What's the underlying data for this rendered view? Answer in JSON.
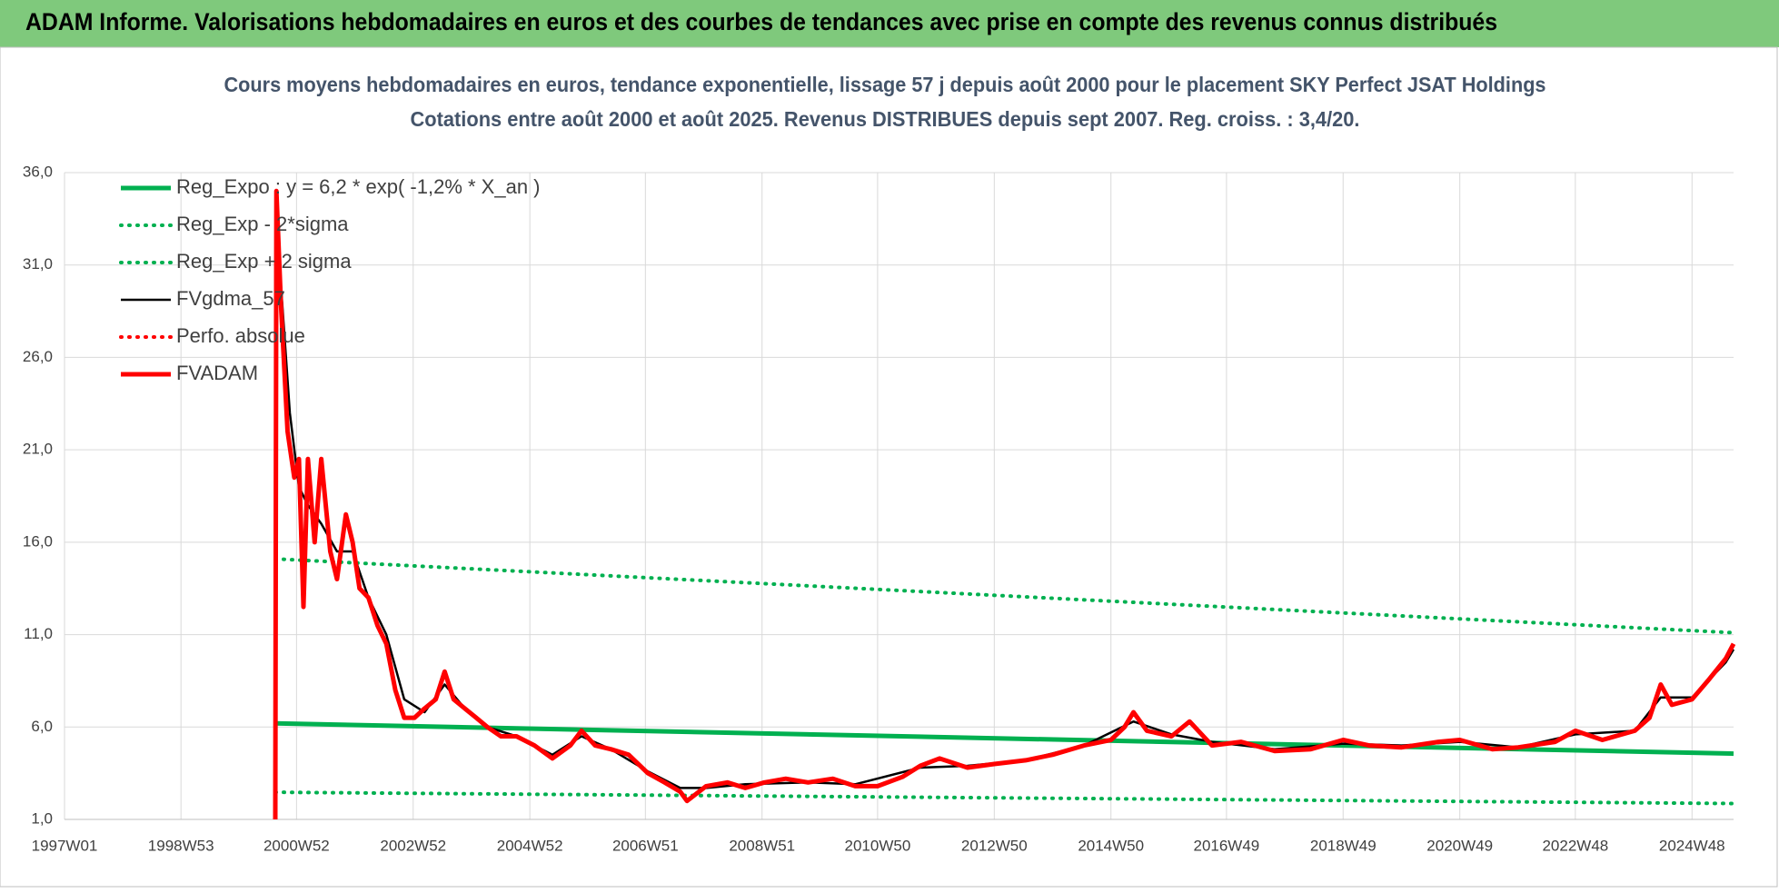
{
  "header": {
    "title": "ADAM Informe. Valorisations hebdomadaires en euros et des courbes de tendances avec prise en compte des revenus connus distribués"
  },
  "chart_data": {
    "type": "line",
    "title": "Cours moyens hebdomadaires en euros, tendance exponentielle, lissage 57 j depuis août 2000 pour le placement SKY Perfect JSAT Holdings",
    "subtitle": "Cotations entre août 2000 et août 2025. Revenus DISTRIBUES depuis sept 2007. Reg. croiss. : 3,4/20.",
    "xlim": [
      "1997W01",
      "2025W33"
    ],
    "xticks": [
      "1997W01",
      "1998W53",
      "2000W52",
      "2002W52",
      "2004W52",
      "2006W51",
      "2008W51",
      "2010W50",
      "2012W50",
      "2014W50",
      "2016W49",
      "2018W49",
      "2020W49",
      "2022W48",
      "2024W48"
    ],
    "ylim": [
      1,
      36
    ],
    "yticks": [
      {
        "value": 1,
        "label": "1,0"
      },
      {
        "value": 6,
        "label": "6,0"
      },
      {
        "value": 11,
        "label": "11,0"
      },
      {
        "value": 16,
        "label": "16,0"
      },
      {
        "value": 21,
        "label": "21,0"
      },
      {
        "value": 26,
        "label": "26,0"
      },
      {
        "value": 31,
        "label": "31,0"
      },
      {
        "value": 36,
        "label": "36,0"
      }
    ],
    "grid": true,
    "legend": "top-left",
    "series": [
      {
        "name": "Reg_Expo : y = 6,2 * exp( -1,2% *  X_an )",
        "color": "#00b050",
        "line_style": "thick",
        "x": [
          "2000W33",
          "2025W33"
        ],
        "values": [
          6.2,
          4.56
        ]
      },
      {
        "name": "Reg_Exp - 2*sigma",
        "color": "#00b050",
        "line_style": "dotted",
        "x": [
          "2000W33",
          "2025W33"
        ],
        "values": [
          2.47,
          1.86
        ]
      },
      {
        "name": "Reg_Exp + 2 sigma",
        "color": "#00b050",
        "line_style": "dotted",
        "x": [
          "2000W33",
          "2025W33"
        ],
        "values": [
          15.1,
          11.1
        ]
      },
      {
        "name": "FVgdma_57",
        "color": "#000000",
        "line_style": "thin",
        "x": [
          "2000W38",
          "2000W46",
          "2001W02",
          "2001W10",
          "2001W22",
          "2001W36",
          "2001W50",
          "2002W12",
          "2002W28",
          "2002W44",
          "2003W10",
          "2003W28",
          "2003W46",
          "2004W14",
          "2004W40",
          "2005W20",
          "2005W46",
          "2006W20",
          "2007W01",
          "2007W30",
          "2008W01",
          "2008W36",
          "2009W40",
          "2010W30",
          "2011W36",
          "2012W26",
          "2013W26",
          "2014W26",
          "2015W18",
          "2015W52",
          "2016W36",
          "2017W40",
          "2018W49",
          "2019W49",
          "2020W49",
          "2021W49",
          "2022W48",
          "2023W49",
          "2024W20",
          "2024W48",
          "2025W26",
          "2025W33"
        ],
        "values": [
          30,
          23,
          19,
          18,
          17,
          15.5,
          15.5,
          13,
          11,
          7.5,
          6.8,
          8.3,
          7,
          6,
          5.5,
          4.5,
          5.5,
          4.8,
          3.6,
          2.7,
          2.7,
          2.9,
          3,
          2.9,
          3.8,
          3.9,
          4.2,
          5,
          6.3,
          5.6,
          5.2,
          4.8,
          5.1,
          5,
          5.2,
          4.9,
          5.6,
          5.8,
          7.6,
          7.6,
          9.5,
          10.2
        ]
      },
      {
        "name": "Perfo. absolue",
        "color": "#ff0000",
        "line_style": "dotted",
        "x": [],
        "values": []
      },
      {
        "name": "FVADAM",
        "color": "#ff0000",
        "line_style": "thick",
        "x": [
          "2000W33",
          "2000W34",
          "2000W38",
          "2000W44",
          "2000W50",
          "2001W02",
          "2001W06",
          "2001W10",
          "2001W16",
          "2001W22",
          "2001W30",
          "2001W36",
          "2001W44",
          "2001W50",
          "2002W04",
          "2002W12",
          "2002W20",
          "2002W28",
          "2002W36",
          "2002W44",
          "2003W01",
          "2003W10",
          "2003W20",
          "2003W28",
          "2003W36",
          "2003W46",
          "2004W04",
          "2004W14",
          "2004W26",
          "2004W40",
          "2005W04",
          "2005W20",
          "2005W36",
          "2005W46",
          "2006W06",
          "2006W20",
          "2006W36",
          "2007W01",
          "2007W16",
          "2007W30",
          "2007W36",
          "2008W01",
          "2008W20",
          "2008W36",
          "2009W01",
          "2009W20",
          "2009W40",
          "2010W10",
          "2010W30",
          "2010W50",
          "2011W20",
          "2011W36",
          "2012W01",
          "2012W26",
          "2012W50",
          "2013W26",
          "2013W50",
          "2014W26",
          "2014W50",
          "2015W10",
          "2015W18",
          "2015W30",
          "2015W52",
          "2016W16",
          "2016W36",
          "2017W10",
          "2017W40",
          "2018W20",
          "2018W49",
          "2019W20",
          "2019W49",
          "2020W30",
          "2020W49",
          "2021W26",
          "2021W49",
          "2022W30",
          "2022W48",
          "2023W20",
          "2023W49",
          "2024W10",
          "2024W20",
          "2024W30",
          "2024W48",
          "2025W10",
          "2025W26",
          "2025W33"
        ],
        "values": [
          1,
          35,
          29,
          22,
          19.5,
          20.5,
          12.5,
          20.5,
          16,
          20.5,
          15.5,
          14,
          17.5,
          16,
          13.5,
          13,
          11.5,
          10.5,
          8,
          6.5,
          6.5,
          7,
          7.5,
          9,
          7.5,
          7,
          6.5,
          6,
          5.5,
          5.5,
          5,
          4.3,
          5,
          5.8,
          5,
          4.8,
          4.5,
          3.5,
          3,
          2.5,
          2,
          2.8,
          3,
          2.7,
          3,
          3.2,
          3,
          3.2,
          2.8,
          2.8,
          3.3,
          3.9,
          4.3,
          3.8,
          4,
          4.2,
          4.5,
          5,
          5.3,
          6,
          6.8,
          5.8,
          5.5,
          6.3,
          5,
          5.2,
          4.7,
          4.8,
          5.3,
          5,
          4.9,
          5.2,
          5.3,
          4.8,
          4.9,
          5.2,
          5.8,
          5.3,
          5.8,
          6.5,
          8.3,
          7.2,
          7.5,
          8.5,
          9.7,
          10.5
        ]
      }
    ]
  }
}
